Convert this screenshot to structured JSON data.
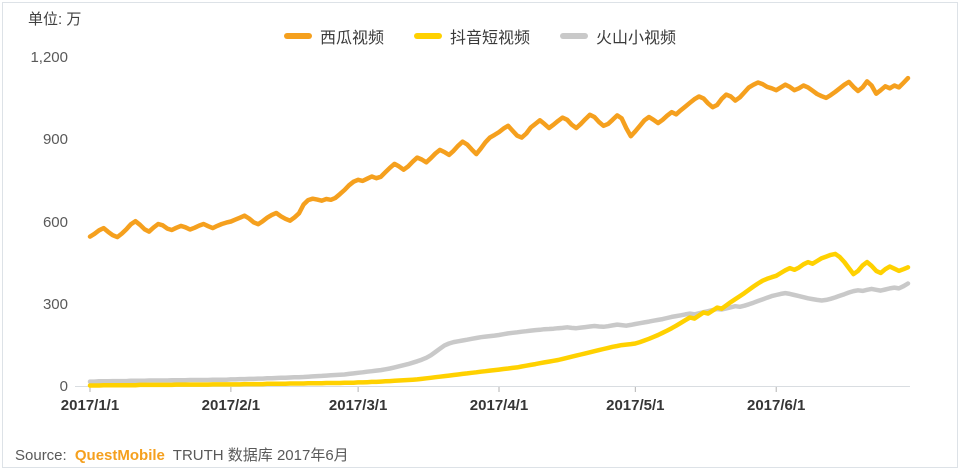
{
  "unit_label": "单位: 万",
  "source": {
    "prefix": "Source:",
    "brand": "QuestMobile",
    "brand_color": "#F5A01E",
    "suffix": "TRUTH 数据库 2017年6月"
  },
  "colors": {
    "xigua_orange": "#F5A01E",
    "douyin_yellow": "#FFD100",
    "huoshan_gray": "#C9C9C9",
    "axis_baseline": "#d9dde1",
    "tick_mark": "#b3b3b3",
    "axis_text": "#595959",
    "x_label_text": "#363636"
  },
  "chart_data": {
    "type": "line",
    "title": "",
    "unit": "万 (10 thousands)",
    "x_start": "2017/1/1",
    "x_end": "2017/6/30",
    "x_range_days": 180,
    "x_tick_labels": [
      "2017/1/1",
      "2017/2/1",
      "2017/3/1",
      "2017/4/1",
      "2017/5/1",
      "2017/6/1"
    ],
    "x_tick_days": [
      0,
      31,
      59,
      90,
      120,
      151
    ],
    "y_ticks": [
      0,
      300,
      600,
      900,
      1200
    ],
    "y_tick_labels": [
      "0",
      "300",
      "600",
      "900",
      "1,200"
    ],
    "ylim": [
      0,
      1200
    ],
    "grid": false,
    "legend_position": "top",
    "series": [
      {
        "key": "xigua",
        "name": "西瓜视频",
        "color": "#F5A01E",
        "values": [
          545,
          555,
          568,
          576,
          562,
          550,
          543,
          556,
          572,
          590,
          601,
          588,
          572,
          563,
          578,
          591,
          586,
          574,
          569,
          577,
          584,
          579,
          571,
          577,
          585,
          591,
          583,
          576,
          584,
          591,
          596,
          600,
          607,
          614,
          621,
          611,
          597,
          590,
          601,
          614,
          624,
          631,
          619,
          610,
          603,
          615,
          630,
          662,
          678,
          683,
          680,
          676,
          682,
          679,
          686,
          700,
          715,
          732,
          745,
          752,
          748,
          756,
          764,
          758,
          763,
          780,
          796,
          810,
          801,
          789,
          801,
          818,
          833,
          826,
          816,
          831,
          848,
          861,
          853,
          843,
          858,
          876,
          891,
          881,
          863,
          846,
          866,
          889,
          906,
          916,
          926,
          939,
          949,
          931,
          913,
          906,
          921,
          943,
          956,
          969,
          956,
          941,
          953,
          967,
          979,
          971,
          953,
          941,
          956,
          973,
          989,
          981,
          963,
          949,
          956,
          971,
          987,
          976,
          941,
          911,
          929,
          949,
          969,
          981,
          971,
          959,
          971,
          986,
          999,
          991,
          1006,
          1019,
          1033,
          1046,
          1056,
          1049,
          1031,
          1017,
          1025,
          1047,
          1063,
          1056,
          1041,
          1053,
          1071,
          1089,
          1099,
          1107,
          1101,
          1091,
          1086,
          1079,
          1089,
          1099,
          1091,
          1079,
          1086,
          1096,
          1089,
          1077,
          1065,
          1057,
          1051,
          1061,
          1073,
          1086,
          1099,
          1109,
          1091,
          1076,
          1089,
          1111,
          1096,
          1066,
          1079,
          1093,
          1086,
          1096,
          1089,
          1106,
          1123
        ]
      },
      {
        "key": "douyin",
        "name": "抖音短视频",
        "color": "#FFD100",
        "values": [
          2,
          2,
          2,
          3,
          3,
          3,
          3,
          3,
          3,
          3,
          3,
          4,
          4,
          4,
          4,
          4,
          4,
          4,
          4,
          5,
          5,
          5,
          5,
          5,
          5,
          5,
          5,
          6,
          6,
          6,
          6,
          6,
          6,
          6,
          7,
          7,
          7,
          7,
          7,
          8,
          8,
          8,
          8,
          8,
          9,
          9,
          9,
          9,
          10,
          10,
          10,
          10,
          11,
          11,
          11,
          11,
          12,
          12,
          12,
          13,
          13,
          14,
          15,
          15,
          16,
          17,
          18,
          19,
          20,
          21,
          22,
          23,
          24,
          26,
          28,
          30,
          32,
          34,
          36,
          38,
          40,
          42,
          44,
          46,
          48,
          50,
          52,
          54,
          56,
          58,
          60,
          62,
          64,
          66,
          68,
          71,
          74,
          77,
          80,
          83,
          86,
          89,
          92,
          95,
          99,
          103,
          107,
          111,
          115,
          119,
          123,
          127,
          131,
          135,
          139,
          143,
          146,
          149,
          151,
          153,
          155,
          160,
          166,
          172,
          179,
          186,
          194,
          202,
          211,
          220,
          230,
          240,
          250,
          246,
          257,
          268,
          264,
          275,
          286,
          282,
          294,
          306,
          317,
          328,
          339,
          351,
          363,
          374,
          384,
          391,
          397,
          402,
          412,
          422,
          430,
          424,
          432,
          444,
          452,
          446,
          456,
          466,
          472,
          478,
          482,
          470,
          452,
          430,
          408,
          420,
          440,
          452,
          438,
          420,
          412,
          426,
          436,
          428,
          420,
          426,
          433
        ]
      },
      {
        "key": "huoshan",
        "name": "火山小视频",
        "color": "#C9C9C9",
        "values": [
          16,
          16,
          17,
          17,
          17,
          18,
          18,
          18,
          18,
          19,
          19,
          19,
          19,
          20,
          20,
          20,
          20,
          20,
          21,
          21,
          21,
          21,
          22,
          22,
          22,
          22,
          22,
          23,
          23,
          23,
          23,
          24,
          24,
          25,
          25,
          26,
          26,
          27,
          27,
          28,
          28,
          29,
          30,
          30,
          31,
          32,
          32,
          33,
          34,
          35,
          36,
          37,
          38,
          39,
          40,
          41,
          42,
          44,
          46,
          48,
          50,
          52,
          54,
          56,
          58,
          61,
          64,
          68,
          72,
          76,
          80,
          85,
          90,
          96,
          103,
          112,
          124,
          136,
          148,
          155,
          160,
          163,
          166,
          169,
          172,
          175,
          178,
          180,
          182,
          184,
          186,
          189,
          192,
          194,
          196,
          198,
          200,
          202,
          204,
          205,
          207,
          208,
          209,
          211,
          212,
          214,
          212,
          211,
          213,
          215,
          217,
          219,
          217,
          216,
          218,
          221,
          224,
          222,
          220,
          223,
          226,
          229,
          232,
          235,
          238,
          241,
          244,
          248,
          252,
          255,
          258,
          261,
          264,
          261,
          265,
          269,
          273,
          277,
          281,
          279,
          283,
          287,
          291,
          289,
          293,
          298,
          304,
          310,
          316,
          322,
          328,
          332,
          336,
          339,
          336,
          332,
          328,
          324,
          320,
          317,
          314,
          312,
          314,
          318,
          323,
          329,
          335,
          341,
          346,
          349,
          347,
          351,
          354,
          351,
          348,
          352,
          356,
          359,
          356,
          364,
          374
        ]
      }
    ]
  }
}
